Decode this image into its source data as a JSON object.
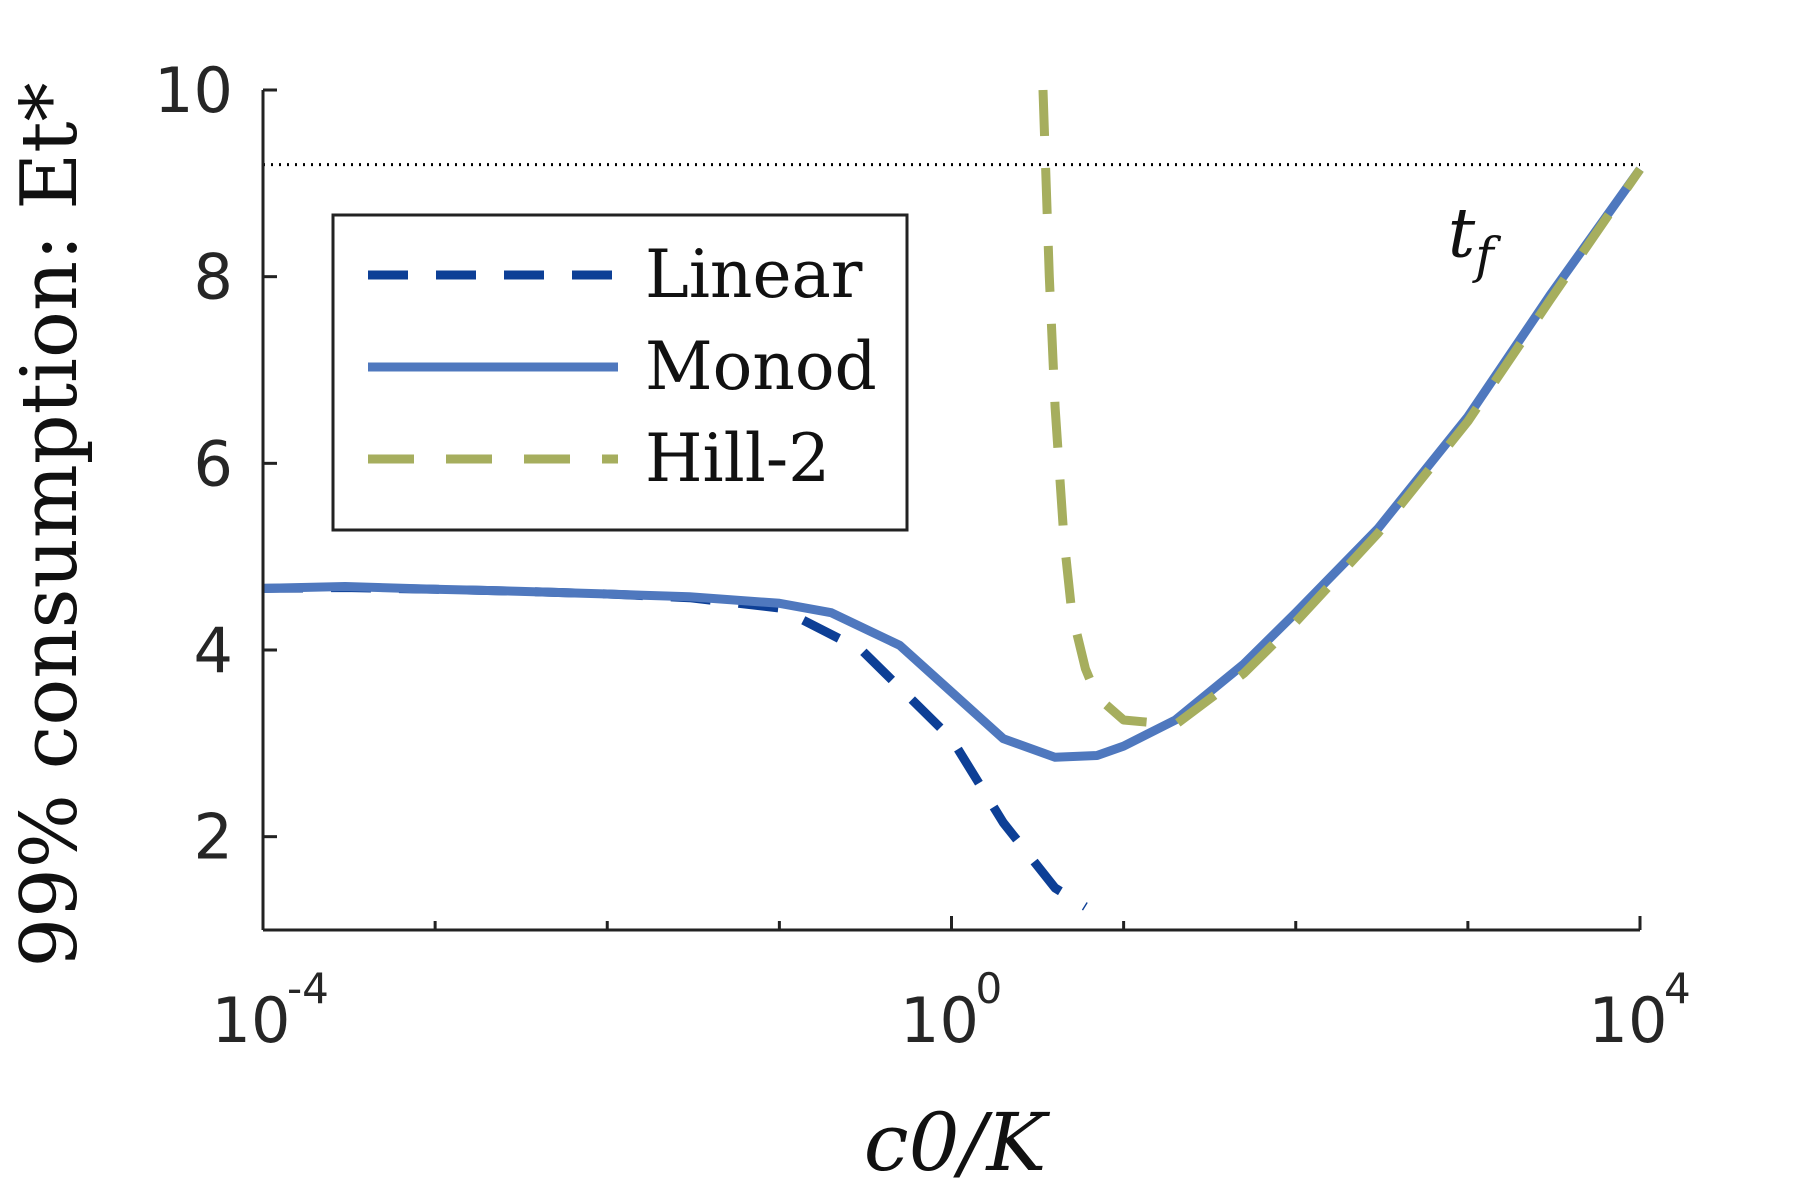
{
  "chart_data": {
    "type": "line",
    "xscale": "log",
    "xlim": [
      0.0001,
      10000
    ],
    "ylim": [
      1,
      10
    ],
    "grid": false,
    "legend_position": "top-left",
    "title": "",
    "ylabel": "99% consumption: Et*",
    "xlabel": "c0/K",
    "y_ticks": [
      {
        "value": 2,
        "label": "2"
      },
      {
        "value": 4,
        "label": "4"
      },
      {
        "value": 6,
        "label": "6"
      },
      {
        "value": 8,
        "label": "8"
      },
      {
        "value": 10,
        "label": "10"
      }
    ],
    "x_ticks": [
      {
        "value": 0.0001,
        "base": "10",
        "exp": "-4"
      },
      {
        "value": 1,
        "base": "10",
        "exp": "0"
      },
      {
        "value": 10000,
        "base": "10",
        "exp": "4"
      }
    ],
    "x_minor_ticks": [
      0.001,
      0.01,
      0.1,
      10,
      100,
      1000
    ],
    "reference_line": {
      "y": 9.2,
      "label": "t_f",
      "label_at": {
        "x": 1000,
        "y": 8.45
      }
    },
    "series": [
      {
        "name": "Linear",
        "color": "#0d3f96",
        "style": "dashed",
        "x": [
          0.0001,
          0.0003,
          0.001,
          0.003,
          0.01,
          0.03,
          0.1,
          0.3,
          1,
          2,
          4,
          6
        ],
        "y": [
          4.66,
          4.67,
          4.65,
          4.63,
          4.6,
          4.56,
          4.45,
          4.0,
          3.05,
          2.15,
          1.45,
          1.25
        ]
      },
      {
        "name": "Monod",
        "color": "#4f78be",
        "style": "solid",
        "x": [
          0.0001,
          0.0003,
          0.001,
          0.003,
          0.01,
          0.03,
          0.1,
          0.2,
          0.5,
          1,
          2,
          4,
          7,
          10,
          20,
          50,
          100,
          300,
          1000,
          3000,
          10000
        ],
        "y": [
          4.66,
          4.68,
          4.65,
          4.63,
          4.6,
          4.57,
          4.5,
          4.4,
          4.05,
          3.55,
          3.05,
          2.85,
          2.87,
          2.97,
          3.25,
          3.85,
          4.4,
          5.3,
          6.5,
          7.8,
          9.15
        ]
      },
      {
        "name": "Hill-2",
        "color": "#a6ae5e",
        "style": "dashed",
        "x": [
          3.4,
          3.7,
          4.0,
          4.5,
          5.0,
          6.0,
          7.0,
          10.0,
          20.0,
          50.0,
          100.0,
          300.0,
          1000.0,
          3000.0,
          10000.0
        ],
        "y": [
          10.0,
          8.0,
          6.6,
          5.2,
          4.4,
          3.8,
          3.5,
          3.25,
          3.2,
          3.75,
          4.3,
          5.25,
          6.45,
          7.75,
          9.15
        ]
      }
    ]
  }
}
